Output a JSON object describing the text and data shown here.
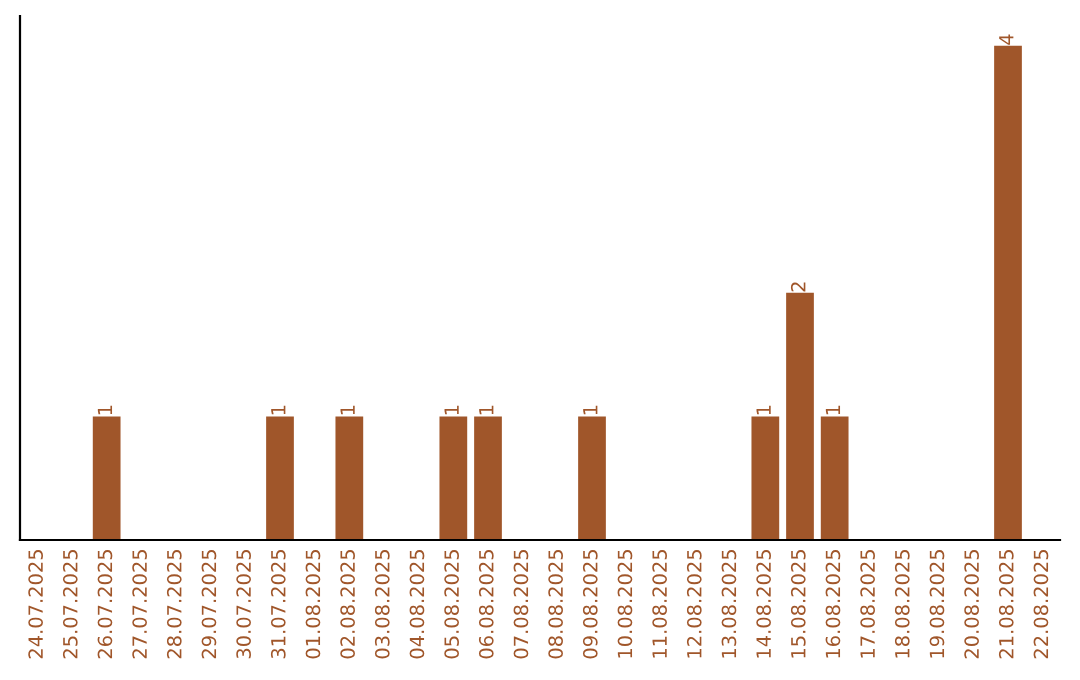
{
  "chart_data": {
    "type": "bar",
    "categories": [
      "24.07.2025",
      "25.07.2025",
      "26.07.2025",
      "27.07.2025",
      "28.07.2025",
      "29.07.2025",
      "30.07.2025",
      "31.07.2025",
      "01.08.2025",
      "02.08.2025",
      "03.08.2025",
      "04.08.2025",
      "05.08.2025",
      "06.08.2025",
      "07.08.2025",
      "08.08.2025",
      "09.08.2025",
      "10.08.2025",
      "11.08.2025",
      "12.08.2025",
      "13.08.2025",
      "14.08.2025",
      "15.08.2025",
      "16.08.2025",
      "17.08.2025",
      "18.08.2025",
      "19.08.2025",
      "20.08.2025",
      "21.08.2025",
      "22.08.2025"
    ],
    "values": [
      0,
      0,
      1,
      0,
      0,
      0,
      0,
      1,
      0,
      1,
      0,
      0,
      1,
      1,
      0,
      0,
      1,
      0,
      0,
      0,
      0,
      1,
      2,
      1,
      0,
      0,
      0,
      0,
      4,
      0
    ],
    "value_labels": [
      null,
      null,
      "1",
      null,
      null,
      null,
      null,
      "1",
      null,
      "1",
      null,
      null,
      "1",
      "1",
      null,
      null,
      "1",
      null,
      null,
      null,
      null,
      "1",
      "2",
      "1",
      null,
      null,
      null,
      null,
      "4",
      null
    ],
    "color": "#a0562a",
    "tick_labels": "x",
    "grid": false,
    "legend": false
  }
}
